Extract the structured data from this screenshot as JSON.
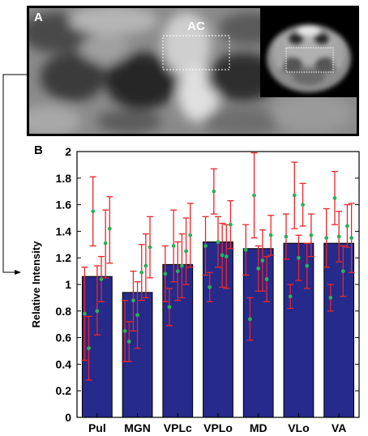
{
  "panel_a": {
    "label": "A",
    "roi_label": "AC"
  },
  "chart_data": {
    "type": "bar",
    "panel_label": "B",
    "categories": [
      "Pul",
      "MGN",
      "VPLc",
      "VPLo",
      "MD",
      "VLo",
      "VA"
    ],
    "values": [
      1.06,
      0.94,
      1.15,
      1.32,
      1.27,
      1.31,
      1.31
    ],
    "ylabel": "Relative Intensity",
    "xlabel": "",
    "ylim": [
      0,
      2
    ],
    "yticks": [
      "0",
      "0.2",
      "0.4",
      "0.6",
      "0.8",
      "1",
      "1.2",
      "1.4",
      "1.6",
      "1.8",
      "2"
    ],
    "points": [
      [
        0.78,
        0.52,
        1.55,
        0.8,
        1.04,
        1.31,
        1.42
      ],
      [
        0.65,
        0.57,
        0.88,
        0.77,
        1.09,
        1.14,
        1.28
      ],
      [
        1.08,
        0.83,
        1.29,
        1.1,
        1.14,
        1.25,
        1.37
      ],
      [
        1.29,
        0.98,
        1.7,
        1.32,
        1.22,
        1.21,
        1.45
      ],
      [
        1.26,
        0.74,
        1.67,
        1.12,
        1.18,
        1.04,
        1.37
      ],
      [
        1.36,
        0.91,
        1.67,
        1.2,
        1.6,
        1.14,
        1.37
      ],
      [
        1.35,
        0.9,
        1.65,
        1.36,
        1.1,
        1.44,
        1.35
      ]
    ],
    "errors": [
      [
        [
          0.43,
          1.13
        ],
        [
          0.28,
          0.76
        ],
        [
          1.29,
          1.81
        ],
        [
          0.62,
          1.14
        ],
        [
          0.87,
          1.21
        ],
        [
          1.05,
          1.56
        ],
        [
          1.16,
          1.66
        ]
      ],
      [
        [
          0.42,
          0.88
        ],
        [
          0.42,
          0.72
        ],
        [
          0.65,
          1.1
        ],
        [
          0.52,
          1.02
        ],
        [
          0.88,
          1.3
        ],
        [
          0.9,
          1.38
        ],
        [
          1.05,
          1.51
        ]
      ],
      [
        [
          0.87,
          1.29
        ],
        [
          0.69,
          0.97
        ],
        [
          1.02,
          1.56
        ],
        [
          0.88,
          1.32
        ],
        [
          0.9,
          1.38
        ],
        [
          1.0,
          1.5
        ],
        [
          1.13,
          1.61
        ]
      ],
      [
        [
          1.07,
          1.51
        ],
        [
          0.87,
          1.09
        ],
        [
          1.53,
          1.87
        ],
        [
          1.13,
          1.51
        ],
        [
          0.98,
          1.46
        ],
        [
          0.97,
          1.45
        ],
        [
          1.27,
          1.63
        ]
      ],
      [
        [
          1.07,
          1.45
        ],
        [
          0.58,
          0.9
        ],
        [
          1.35,
          1.99
        ],
        [
          0.95,
          1.29
        ],
        [
          0.95,
          1.41
        ],
        [
          0.87,
          1.21
        ],
        [
          1.22,
          1.52
        ]
      ],
      [
        [
          1.19,
          1.53
        ],
        [
          0.82,
          1.0
        ],
        [
          1.42,
          1.92
        ],
        [
          1.03,
          1.37
        ],
        [
          1.44,
          1.76
        ],
        [
          0.97,
          1.31
        ],
        [
          1.21,
          1.53
        ]
      ],
      [
        [
          1.13,
          1.57
        ],
        [
          0.8,
          1.0
        ],
        [
          1.45,
          1.85
        ],
        [
          1.17,
          1.55
        ],
        [
          0.91,
          1.29
        ],
        [
          1.28,
          1.6
        ],
        [
          1.09,
          1.61
        ]
      ]
    ],
    "colors": {
      "bar_fill": "#262a8a",
      "bar_edge": "#000000",
      "errorbar": "#e8262a",
      "point": "#2fae5a"
    },
    "grid": false,
    "legend": "none"
  }
}
